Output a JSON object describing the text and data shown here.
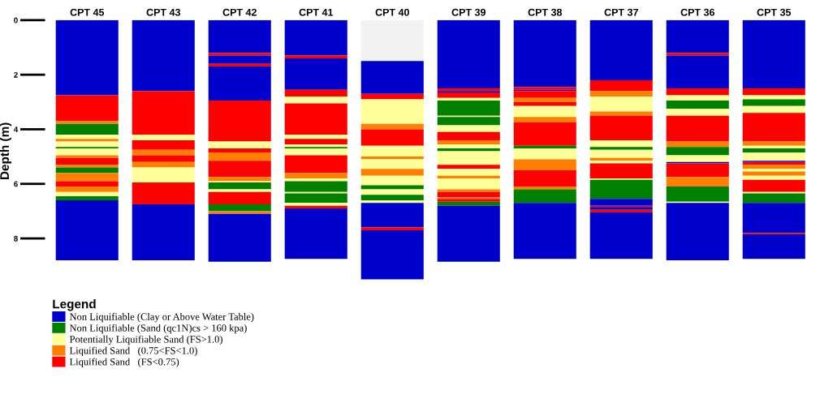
{
  "chart_data": {
    "type": "bar",
    "stacked": true,
    "ylabel": "Depth (m)",
    "legend_title": "Legend",
    "legend": "bottom left",
    "categories": [
      "CPT 45",
      "CPT 43",
      "CPT 42",
      "CPT 41",
      "CPT 40",
      "CPT 39",
      "CPT 38",
      "CPT 37",
      "CPT 36",
      "CPT 35"
    ],
    "ylim": [
      9.6,
      0
    ],
    "yticks": [
      0,
      2,
      4,
      6,
      8
    ],
    "series": [
      {
        "values": [
          null,
          null,
          null,
          null,
          1.5,
          null,
          null,
          null,
          null,
          null
        ],
        "colors": [
          null,
          null,
          null,
          null,
          "#f2f2f2",
          null,
          null,
          null,
          null,
          null
        ]
      },
      {
        "values": [
          2.75,
          2.6,
          1.2,
          1.3,
          1.2,
          2.5,
          2.45,
          2.2,
          1.2,
          2.5
        ],
        "colors": [
          "#0000cc",
          "#0000cc",
          "#0000cc",
          "#0000cc",
          "#0000cc",
          "#0000cc",
          "#0000cc",
          "#0000cc",
          "#0000cc",
          "#0000cc"
        ]
      },
      {
        "values": [
          0.95,
          1.6,
          0.1,
          0.1,
          0.2,
          0.1,
          0.1,
          0.4,
          0.1,
          0.25
        ],
        "colors": [
          "#ff0000",
          "#ff0000",
          "#ff0000",
          "#ff0000",
          "#ff0000",
          "#ff0000",
          "#ff0000",
          "#ff0000",
          "#ff0000",
          "#ff0000"
        ]
      },
      {
        "values": [
          0.1,
          0.2,
          0.3,
          1.15,
          0.9,
          0.05,
          0.05,
          0.2,
          1.2,
          0.15
        ],
        "colors": [
          "#ff8000",
          "#ffff99",
          "#0000cc",
          "#0000cc",
          "#ffff99",
          "#0000cc",
          "#0000cc",
          "#ff8000",
          "#0000cc",
          "#ffff99"
        ]
      },
      {
        "values": [
          0.4,
          0.35,
          0.1,
          0.25,
          0.2,
          0.2,
          0.25,
          0.55,
          0.25,
          0.25
        ],
        "colors": [
          "#008000",
          "#ff0000",
          "#ff0000",
          "#ff0000",
          "#ff8000",
          "#ff0000",
          "#ff0000",
          "#ffff99",
          "#ff0000",
          "#008000"
        ]
      },
      {
        "values": [
          0.15,
          0.2,
          1.25,
          0.25,
          0.6,
          0.1,
          0.15,
          0.15,
          0.2,
          0.25
        ],
        "colors": [
          "#ffff99",
          "#ff8000",
          "#0000cc",
          "#ffff99",
          "#ff0000",
          "#ffff99",
          "#ff8000",
          "#ff8000",
          "#ffff99",
          "#ffff99"
        ]
      },
      {
        "values": [
          0.1,
          0.25,
          1.5,
          1.15,
          0.4,
          0.55,
          0.15,
          0.9,
          0.3,
          1.05
        ],
        "colors": [
          "#ff8000",
          "#ff0000",
          "#ff0000",
          "#ff0000",
          "#ffff99",
          "#008000",
          "#ff0000",
          "#ff0000",
          "#008000",
          "#ff0000"
        ]
      },
      {
        "values": [
          0.2,
          0.2,
          0.25,
          0.15,
          0.1,
          0.05,
          0.4,
          0.25,
          0.25,
          0.15
        ],
        "colors": [
          "#ffff99",
          "#ff8000",
          "#ffff99",
          "#ffff99",
          "#ff8000",
          "#ffff99",
          "#ffff99",
          "#ffff99",
          "#ffff99",
          "#ff8000"
        ]
      },
      {
        "values": [
          0.05,
          0.55,
          0.15,
          0.2,
          0.35,
          0.3,
          0.2,
          0.1,
          0.95,
          0.1
        ],
        "colors": [
          "#008000",
          "#ffff99",
          "#ff0000",
          "#ff0000",
          "#ffff99",
          "#008000",
          "#ff8000",
          "#008000",
          "#ff0000",
          "#ffff99"
        ]
      },
      {
        "values": [
          0.25,
          0.8,
          0.3,
          0.1,
          0.25,
          0.25,
          0.85,
          0.3,
          0.2,
          0.15
        ],
        "colors": [
          "#ffff99",
          "#ff0000",
          "#ff8000",
          "#ffff99",
          "#ff8000",
          "#ffff99",
          "#ff0000",
          "#ffff99",
          "#ff8000",
          "#008000"
        ]
      },
      {
        "values": [
          0.1,
          2.05,
          0.6,
          0.05,
          0.35,
          0.3,
          0.1,
          0.1,
          0.3,
          0.3
        ],
        "colors": [
          "#ff8000",
          "#0000cc",
          "#ff0000",
          "#008000",
          "#ffff99",
          "#ff0000",
          "#008000",
          "#ff8000",
          "#008000",
          "#ffff99"
        ]
      },
      {
        "values": [
          0.25,
          null,
          0.15,
          0.25,
          0.15,
          0.15,
          0.4,
          0.1,
          0.25,
          0.05
        ],
        "colors": [
          "#ff0000",
          null,
          "#ff8000",
          "#ffff99",
          "#008000",
          "#ff8000",
          "#ffff99",
          "#ffff99",
          "#ffff99",
          "#0000cc"
        ]
      },
      {
        "values": [
          0.1,
          null,
          0.05,
          0.65,
          0.2,
          0.15,
          0.4,
          0.55,
          0.05,
          0.1
        ],
        "colors": [
          "#ff8000",
          null,
          "#ffff99",
          "#ff0000",
          "#ffff99",
          "#ffff99",
          "#ff8000",
          "#ff0000",
          "#0000cc",
          "#ff0000"
        ]
      },
      {
        "values": [
          0.2,
          null,
          0.25,
          0.2,
          0.2,
          0.1,
          0.6,
          0.05,
          0.5,
          0.15
        ],
        "colors": [
          "#008000",
          null,
          "#008000",
          "#ff8000",
          "#008000",
          "#008000",
          "#ff0000",
          "#ffff99",
          "#ff0000",
          "#ff8000"
        ]
      },
      {
        "values": [
          0.3,
          null,
          0.1,
          0.1,
          0.1,
          0.5,
          0.1,
          0.7,
          0.35,
          0.1
        ],
        "colors": [
          "#ff8000",
          null,
          "#ffff99",
          "#ffff99",
          "#ffff99",
          "#ffff99",
          "#ff8000",
          "#008000",
          "#ff8000",
          "#ffff99"
        ]
      },
      {
        "values": [
          0.2,
          null,
          0.45,
          0.4,
          0.9,
          0.15,
          0.5,
          0.25,
          0.55,
          0.15
        ],
        "colors": [
          "#ff0000",
          null,
          "#ff0000",
          "#008000",
          "#0000cc",
          "#ff0000",
          "#008000",
          "#0000cc",
          "#008000",
          "#ff8000"
        ]
      },
      {
        "values": [
          0.2,
          null,
          0.25,
          0.05,
          0.1,
          0.25,
          2.05,
          0.05,
          0.05,
          0.15
        ],
        "colors": [
          "#ff8000",
          null,
          "#008000",
          "#ffff99",
          "#ff0000",
          "#ffff99",
          "#0000cc",
          "#ff0000",
          "#ffff99",
          "#ffff99"
        ]
      },
      {
        "values": [
          0.15,
          null,
          0.1,
          0.35,
          1.8,
          0.1,
          null,
          0.1,
          2.1,
          0.45
        ],
        "colors": [
          "#ffff99",
          null,
          "#ff8000",
          "#008000",
          "#0000cc",
          "#ff8000",
          null,
          "#0000cc",
          "#0000cc",
          "#ff0000"
        ]
      },
      {
        "values": [
          0.15,
          null,
          1.75,
          0.1,
          null,
          0.4,
          null,
          0.1,
          null,
          0.05
        ],
        "colors": [
          "#008000",
          null,
          "#0000cc",
          "#ffff99",
          null,
          "#ffff99",
          null,
          "#ff0000",
          null,
          "#ffff99"
        ]
      },
      {
        "values": [
          2.2,
          null,
          null,
          0.1,
          null,
          0.1,
          null,
          1.7,
          null,
          0.35
        ],
        "colors": [
          "#0000cc",
          null,
          null,
          "#ff0000",
          null,
          "#ff8000",
          null,
          "#0000cc",
          null,
          "#008000"
        ]
      },
      {
        "values": [
          null,
          null,
          null,
          1.85,
          null,
          0.2,
          null,
          null,
          null,
          1.1
        ],
        "colors": [
          null,
          null,
          null,
          "#0000cc",
          null,
          "#ff0000",
          null,
          null,
          null,
          "#0000cc"
        ]
      },
      {
        "values": [
          null,
          null,
          null,
          null,
          null,
          0.05,
          null,
          null,
          null,
          0.05
        ],
        "colors": [
          null,
          null,
          null,
          null,
          null,
          "#ff8000",
          null,
          null,
          null,
          "#ff0000"
        ]
      },
      {
        "values": [
          null,
          null,
          null,
          null,
          null,
          0.1,
          null,
          null,
          null,
          0.9
        ],
        "colors": [
          null,
          null,
          null,
          null,
          null,
          "#ff0000",
          null,
          null,
          null,
          "#0000cc"
        ]
      },
      {
        "values": [
          null,
          null,
          null,
          null,
          null,
          0.15,
          null,
          null,
          null,
          null
        ],
        "colors": [
          null,
          null,
          null,
          null,
          null,
          "#008000",
          null,
          null,
          null,
          null
        ]
      },
      {
        "values": [
          null,
          null,
          null,
          null,
          null,
          2.05,
          null,
          null,
          null,
          null
        ],
        "colors": [
          null,
          null,
          null,
          null,
          null,
          "#0000cc",
          null,
          null,
          null,
          null
        ]
      },
      {
        "name": "Non Liquifiable (Clay or Above Water Table)",
        "color": "#0000cc",
        "values": [
          null,
          null,
          null,
          null,
          null,
          null,
          null,
          null,
          null,
          null
        ]
      },
      {
        "name": "Non Liquifiable (Sand (qc1N)cs > 160 kpa)",
        "color": "#008000",
        "values": [
          null,
          null,
          null,
          null,
          null,
          null,
          null,
          null,
          null,
          null
        ]
      },
      {
        "name": "Potentially Liquifiable Sand (FS>1.0)",
        "color": "#ffff99",
        "values": [
          null,
          null,
          null,
          null,
          null,
          null,
          null,
          null,
          null,
          null
        ]
      },
      {
        "name": "Liquified Sand   (0.75<FS<1.0)",
        "color": "#ff8000",
        "values": [
          null,
          null,
          null,
          null,
          null,
          null,
          null,
          null,
          null,
          null
        ]
      },
      {
        "name": "Liquified Sand   (FS<0.75)",
        "color": "#ff0000",
        "values": [
          null,
          null,
          null,
          null,
          null,
          null,
          null,
          null,
          null,
          null
        ]
      }
    ]
  }
}
